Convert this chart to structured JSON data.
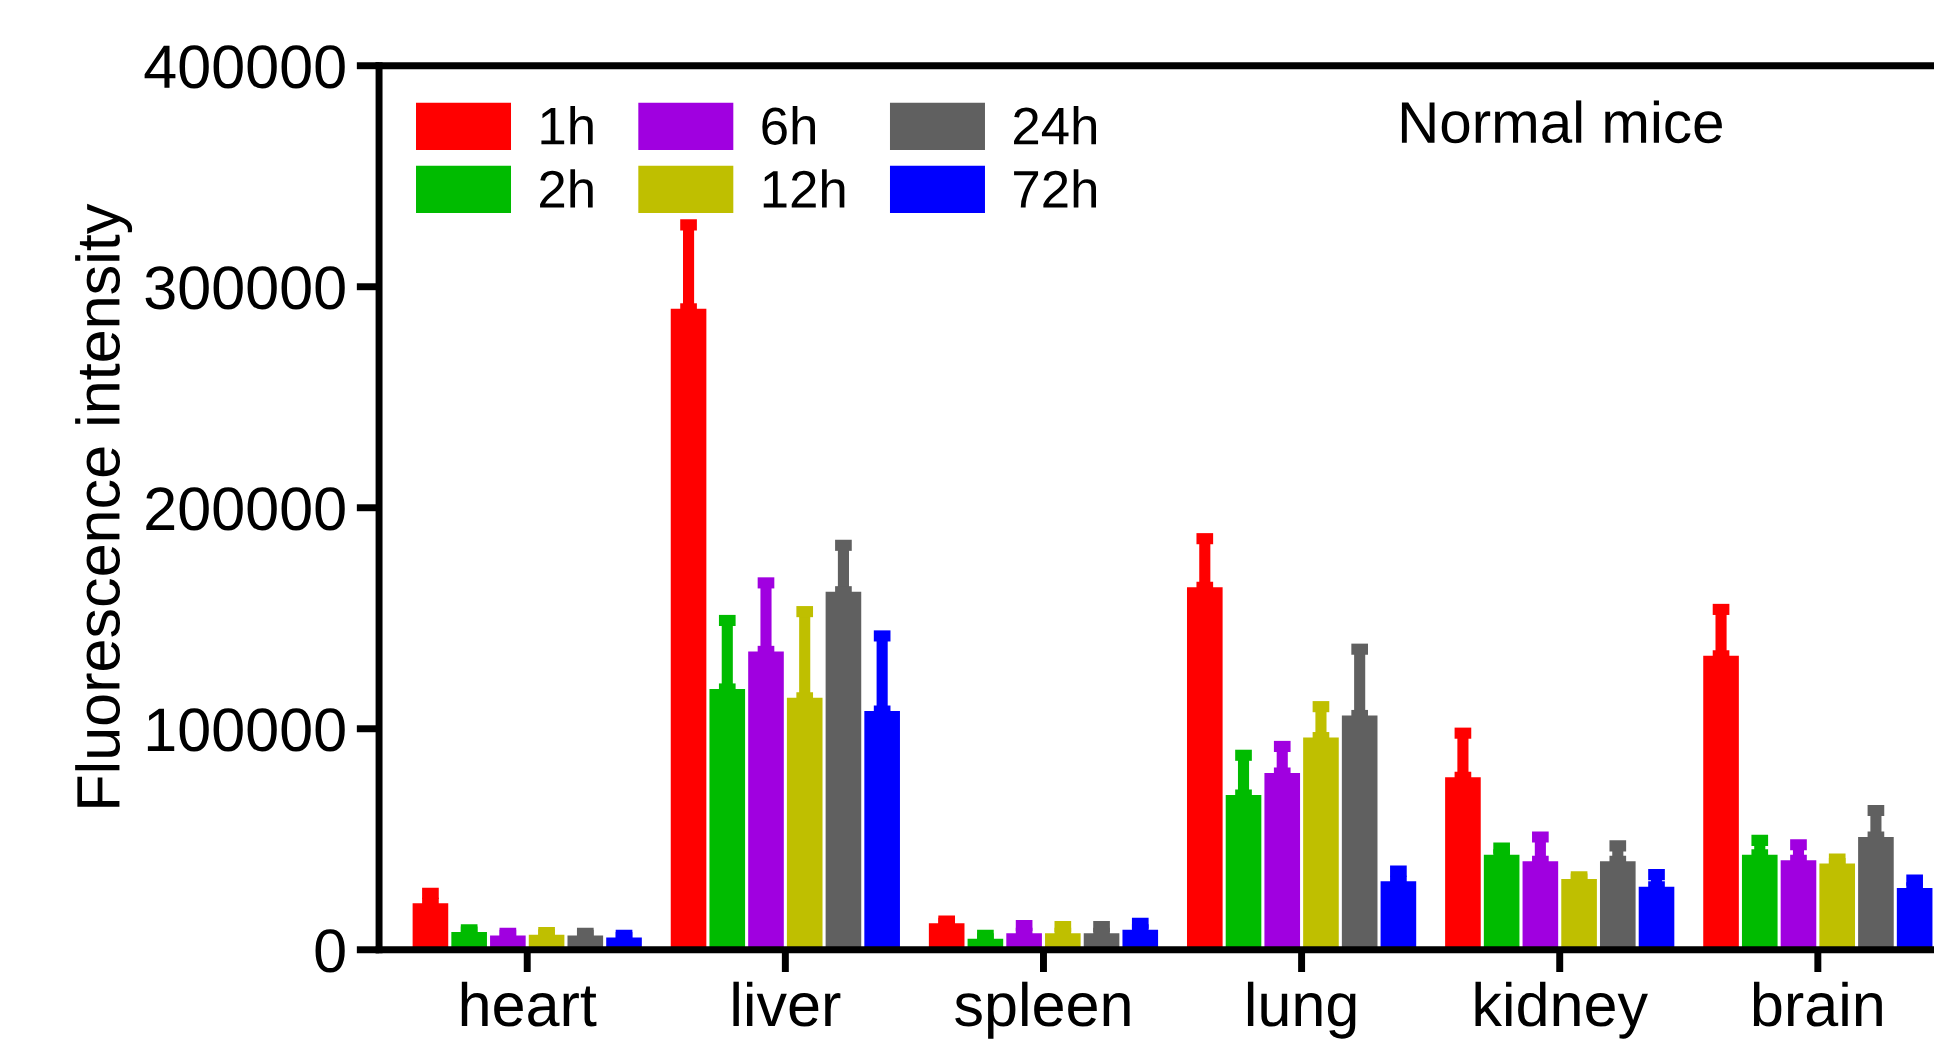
{
  "chart_data": {
    "type": "bar",
    "ylabel": "Fluorescence intensity",
    "categories": [
      "heart",
      "liver",
      "spleen",
      "lung",
      "kidney",
      "brain"
    ],
    "series": [
      {
        "name": "1h",
        "color": "#ff0000",
        "values": [
          21000,
          290000,
          12000,
          164000,
          78000,
          133000
        ],
        "errors": [
          4500,
          38000,
          1000,
          22000,
          20000,
          21000
        ]
      },
      {
        "name": "2h",
        "color": "#00bb00",
        "values": [
          8000,
          118000,
          5000,
          70000,
          43000,
          43000
        ],
        "errors": [
          1000,
          31000,
          1500,
          18000,
          3000,
          6500
        ]
      },
      {
        "name": "6h",
        "color": "#a000e0",
        "values": [
          6500,
          135000,
          7500,
          80000,
          40000,
          40500
        ],
        "errors": [
          1000,
          31000,
          3500,
          12000,
          11000,
          7000
        ]
      },
      {
        "name": "12h",
        "color": "#bfbf00",
        "values": [
          6800,
          114000,
          7500,
          96000,
          32000,
          39000
        ],
        "errors": [
          1000,
          39000,
          3000,
          14000,
          1000,
          2000
        ]
      },
      {
        "name": "24h",
        "color": "#606060",
        "values": [
          6500,
          162000,
          7500,
          106000,
          40000,
          51000
        ],
        "errors": [
          1000,
          21000,
          3000,
          30000,
          7000,
          12000
        ]
      },
      {
        "name": "72h",
        "color": "#0000ff",
        "values": [
          5500,
          108000,
          9000,
          31000,
          28500,
          28000
        ],
        "errors": [
          1000,
          34000,
          3000,
          4600,
          5500,
          3500
        ]
      }
    ],
    "ylim": [
      0,
      400000
    ],
    "yticks": [
      0,
      100000,
      200000,
      300000,
      400000
    ],
    "grid": false,
    "legend": "top left",
    "annotations": [
      "Normal mice"
    ]
  }
}
